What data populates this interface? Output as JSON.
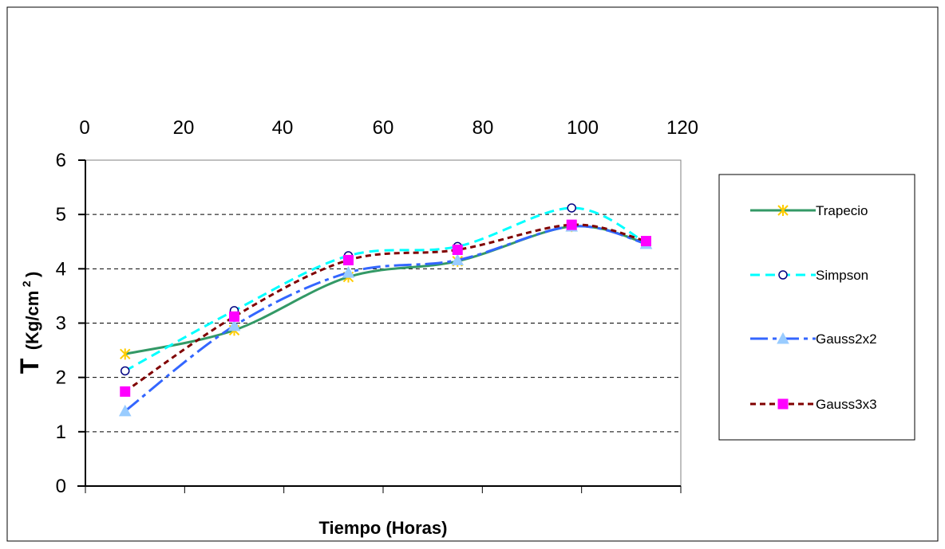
{
  "chart_data": {
    "type": "line",
    "title": "",
    "xlabel": "Tiempo (Horas)",
    "ylabel": "T",
    "ylabel_unit": "(Kg/cm",
    "ylabel_sup": "2",
    "ylabel_close": ")",
    "xlim": [
      0,
      120
    ],
    "ylim": [
      0,
      6
    ],
    "x_ticks": [
      "0",
      "20",
      "40",
      "60",
      "80",
      "100",
      "120"
    ],
    "y_ticks": [
      "0",
      "1",
      "2",
      "3",
      "4",
      "5",
      "6"
    ],
    "grid": "horizontal-dashed",
    "legend_position": "right",
    "x": [
      8,
      30,
      53,
      75,
      98,
      113
    ],
    "series": [
      {
        "name": "Trapecio",
        "color": "#339966",
        "marker": "x-star",
        "marker_color": "#FFCC00",
        "dash": "solid",
        "values": [
          2.43,
          2.87,
          3.85,
          4.14,
          4.78,
          4.47
        ]
      },
      {
        "name": "Simpson",
        "color": "#00FFFF",
        "marker": "circle",
        "marker_color": "#000080",
        "dash": "dashed",
        "values": [
          2.12,
          3.23,
          4.24,
          4.41,
          5.12,
          4.48
        ]
      },
      {
        "name": "Gauss2x2",
        "color": "#3366FF",
        "marker": "triangle",
        "marker_color": "#99CCFF",
        "dash": "dash-dot",
        "values": [
          1.38,
          2.95,
          3.93,
          4.16,
          4.78,
          4.46
        ]
      },
      {
        "name": "Gauss3x3",
        "color": "#800000",
        "marker": "square",
        "marker_color": "#FF00FF",
        "dash": "dotted",
        "values": [
          1.74,
          3.12,
          4.16,
          4.35,
          4.81,
          4.51
        ]
      }
    ]
  }
}
